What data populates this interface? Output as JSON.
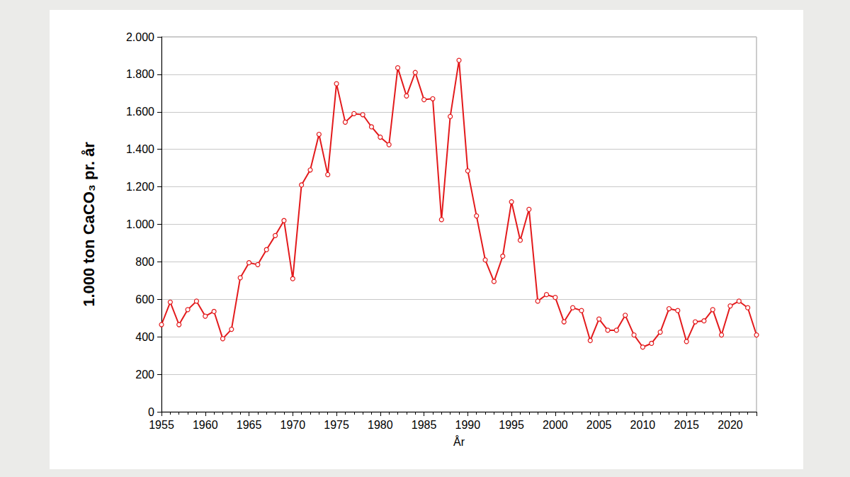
{
  "chart_data": {
    "type": "line",
    "x_label": "År",
    "y_label": "1.000 ton CaCO₃ pr. år",
    "x": [
      1955,
      1956,
      1957,
      1958,
      1959,
      1960,
      1961,
      1962,
      1963,
      1964,
      1965,
      1966,
      1967,
      1968,
      1969,
      1970,
      1971,
      1972,
      1973,
      1974,
      1975,
      1976,
      1977,
      1978,
      1979,
      1980,
      1981,
      1982,
      1983,
      1984,
      1985,
      1986,
      1987,
      1988,
      1989,
      1990,
      1991,
      1992,
      1993,
      1994,
      1995,
      1996,
      1997,
      1998,
      1999,
      2000,
      2001,
      2002,
      2003,
      2004,
      2005,
      2006,
      2007,
      2008,
      2009,
      2010,
      2011,
      2012,
      2013,
      2014,
      2015,
      2016,
      2017,
      2018,
      2019,
      2020,
      2021,
      2022,
      2023
    ],
    "values": [
      465,
      585,
      465,
      545,
      590,
      510,
      535,
      390,
      440,
      715,
      795,
      785,
      865,
      940,
      1020,
      710,
      1210,
      1290,
      1480,
      1265,
      1750,
      1545,
      1590,
      1585,
      1520,
      1465,
      1425,
      1835,
      1685,
      1810,
      1665,
      1670,
      1025,
      1575,
      1875,
      1285,
      1045,
      810,
      695,
      830,
      1120,
      915,
      1080,
      590,
      625,
      610,
      480,
      555,
      540,
      380,
      495,
      435,
      435,
      515,
      410,
      345,
      365,
      425,
      550,
      540,
      375,
      480,
      485,
      545,
      410,
      565,
      590,
      555,
      410
    ],
    "color": "#e31a1c",
    "marker": "circle",
    "xlim": [
      1955,
      2023
    ],
    "xticks": [
      1955,
      1960,
      1965,
      1970,
      1975,
      1980,
      1985,
      1990,
      1995,
      2000,
      2005,
      2010,
      2015,
      2020
    ],
    "ylim": [
      0,
      2000
    ],
    "yticks": [
      0,
      200,
      400,
      600,
      800,
      {
        "value": 1000,
        "label": "1.000"
      },
      {
        "value": 1200,
        "label": "1.200"
      },
      {
        "value": 1400,
        "label": "1.400"
      },
      {
        "value": 1600,
        "label": "1.600"
      },
      {
        "value": 1800,
        "label": "1.800"
      },
      {
        "value": 2000,
        "label": "2.000"
      }
    ],
    "grid": true
  }
}
